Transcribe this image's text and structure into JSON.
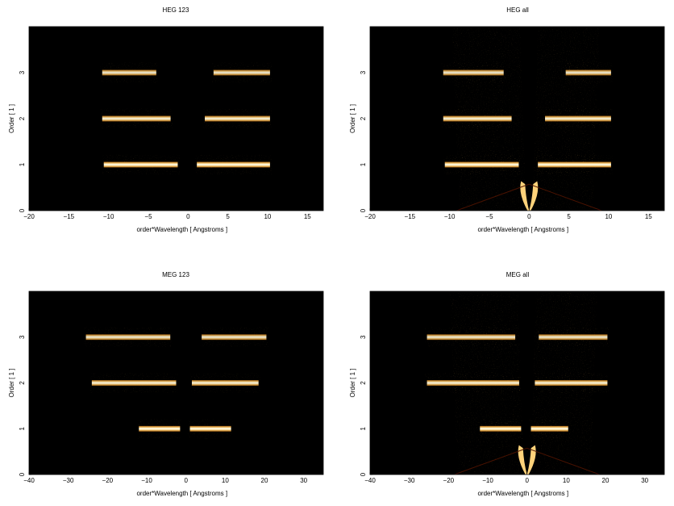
{
  "chart_data": [
    {
      "type": "heatmap",
      "title": "HEG 123",
      "xlabel": "order*Wavelength [ Angstroms ]",
      "ylabel": "Order [ 1 ]",
      "xlim": [
        -20,
        17
      ],
      "ylim": [
        0,
        4
      ],
      "xticks": [
        -20,
        -15,
        -10,
        -5,
        0,
        5,
        10,
        15
      ],
      "yticks": [
        0,
        1,
        2,
        3
      ],
      "background": "#000000",
      "stripes": [
        {
          "order": 3,
          "x0": -10.8,
          "x1": -4.0,
          "intensity": 0.9
        },
        {
          "order": 3,
          "x0": 3.2,
          "x1": 10.3,
          "intensity": 0.9
        },
        {
          "order": 2,
          "x0": -10.8,
          "x1": -2.2,
          "intensity": 0.95
        },
        {
          "order": 2,
          "x0": 2.1,
          "x1": 10.3,
          "intensity": 0.95
        },
        {
          "order": 1,
          "x0": -10.6,
          "x1": -1.3,
          "intensity": 1.0
        },
        {
          "order": 1,
          "x0": 1.1,
          "x1": 10.3,
          "intensity": 1.0
        }
      ],
      "features": []
    },
    {
      "type": "heatmap",
      "title": "HEG all",
      "xlabel": "order*Wavelength [ Angstroms ]",
      "ylabel": "Order [ 1 ]",
      "xlim": [
        -20,
        17
      ],
      "ylim": [
        0,
        4
      ],
      "xticks": [
        -20,
        -15,
        -10,
        -5,
        0,
        5,
        10,
        15
      ],
      "yticks": [
        0,
        1,
        2,
        3
      ],
      "background": "#000000",
      "stripes": [
        {
          "order": 3,
          "x0": -10.8,
          "x1": -3.2,
          "intensity": 0.9
        },
        {
          "order": 3,
          "x0": 4.6,
          "x1": 10.3,
          "intensity": 0.9
        },
        {
          "order": 2,
          "x0": -10.8,
          "x1": -2.2,
          "intensity": 0.95
        },
        {
          "order": 2,
          "x0": 2.0,
          "x1": 10.3,
          "intensity": 0.95
        },
        {
          "order": 1,
          "x0": -10.6,
          "x1": -1.3,
          "intensity": 1.0
        },
        {
          "order": 1,
          "x0": 1.1,
          "x1": 10.3,
          "intensity": 1.0
        }
      ],
      "features": [
        "v-background",
        "zero-order-flares"
      ]
    },
    {
      "type": "heatmap",
      "title": "MEG 123",
      "xlabel": "order*Wavelength [ Angstroms ]",
      "ylabel": "Order [ 1 ]",
      "xlim": [
        -40,
        35
      ],
      "ylim": [
        0,
        4
      ],
      "xticks": [
        -40,
        -30,
        -20,
        -10,
        0,
        10,
        20,
        30
      ],
      "yticks": [
        0,
        1,
        2,
        3
      ],
      "background": "#000000",
      "stripes": [
        {
          "order": 3,
          "x0": -25.5,
          "x1": -4.0,
          "intensity": 0.9
        },
        {
          "order": 3,
          "x0": 4.0,
          "x1": 20.5,
          "intensity": 0.9
        },
        {
          "order": 2,
          "x0": -24.0,
          "x1": -2.5,
          "intensity": 0.95
        },
        {
          "order": 2,
          "x0": 1.5,
          "x1": 18.5,
          "intensity": 0.95
        },
        {
          "order": 1,
          "x0": -12.0,
          "x1": -1.5,
          "intensity": 1.0
        },
        {
          "order": 1,
          "x0": 1.0,
          "x1": 11.5,
          "intensity": 1.0
        }
      ],
      "features": []
    },
    {
      "type": "heatmap",
      "title": "MEG all",
      "xlabel": "order*Wavelength [ Angstroms ]",
      "ylabel": "Order [ 1 ]",
      "xlim": [
        -40,
        35
      ],
      "ylim": [
        0,
        4
      ],
      "xticks": [
        -40,
        -30,
        -20,
        -10,
        0,
        10,
        20,
        30
      ],
      "yticks": [
        0,
        1,
        2,
        3
      ],
      "background": "#000000",
      "stripes": [
        {
          "order": 3,
          "x0": -25.5,
          "x1": -3.0,
          "intensity": 0.9
        },
        {
          "order": 3,
          "x0": 3.0,
          "x1": 20.5,
          "intensity": 0.9
        },
        {
          "order": 2,
          "x0": -25.5,
          "x1": -2.0,
          "intensity": 0.95
        },
        {
          "order": 2,
          "x0": 2.0,
          "x1": 20.5,
          "intensity": 0.95
        },
        {
          "order": 1,
          "x0": -12.0,
          "x1": -1.5,
          "intensity": 1.0
        },
        {
          "order": 1,
          "x0": 1.0,
          "x1": 10.5,
          "intensity": 1.0
        }
      ],
      "features": [
        "v-background",
        "zero-order-flares"
      ]
    }
  ],
  "colors": {
    "background": "#000000",
    "colormap": [
      "#000000",
      "#3a0000",
      "#8b1500",
      "#d45a00",
      "#ffb238",
      "#ffffff"
    ]
  }
}
